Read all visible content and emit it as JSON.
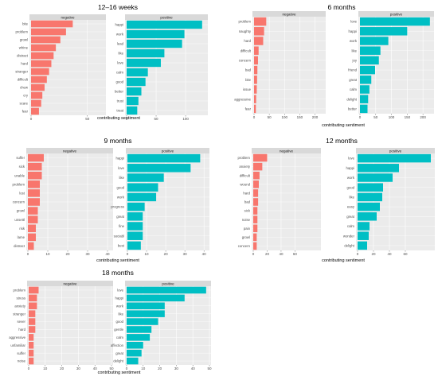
{
  "colors": {
    "negative": "#F8766D",
    "positive": "#00BFC4",
    "panel_bg": "#EBEBEB",
    "strip_bg": "#D9D9D9",
    "grid": "#FFFFFF",
    "text": "#4D4D4D"
  },
  "chart_data": [
    {
      "type": "bar",
      "orientation": "horizontal",
      "title": "12–16 weeks",
      "xlabel": "contributing sentiment",
      "facets": [
        {
          "name": "negative",
          "xticks": [
            0,
            50
          ],
          "xlim": [
            0,
            65
          ],
          "categories": [
            "bite",
            "problem",
            "growl",
            "whine",
            "distract",
            "hard",
            "stranger",
            "difficult",
            "chew",
            "cry",
            "scare",
            "fear"
          ],
          "values": [
            37,
            31,
            26,
            22,
            20,
            18,
            16,
            14,
            12,
            10,
            9,
            7
          ]
        },
        {
          "name": "positive",
          "xticks": [
            0,
            50,
            100
          ],
          "xlim": [
            0,
            135
          ],
          "categories": [
            "happi",
            "work",
            "lead",
            "like",
            "love",
            "calm",
            "good",
            "better",
            "trust",
            "treat"
          ],
          "values": [
            128,
            98,
            94,
            64,
            58,
            36,
            32,
            25,
            20,
            18
          ]
        }
      ]
    },
    {
      "type": "bar",
      "orientation": "horizontal",
      "title": "6 months",
      "xlabel": "contributing sentiment",
      "facets": [
        {
          "name": "negative",
          "xticks": [
            0,
            50,
            100,
            150,
            200
          ],
          "xlim": [
            0,
            230
          ],
          "categories": [
            "problem",
            "naughty",
            "hard",
            "difficult",
            "concern",
            "bad",
            "bite",
            "issue",
            "aggressive",
            "fear"
          ],
          "values": [
            40,
            33,
            30,
            15,
            13,
            11,
            10,
            9,
            7,
            6
          ]
        },
        {
          "name": "positive",
          "xticks": [
            0,
            50,
            100,
            150,
            200
          ],
          "xlim": [
            0,
            230
          ],
          "categories": [
            "love",
            "happi",
            "work",
            "like",
            "joy",
            "friend",
            "great",
            "calm",
            "delight",
            "better"
          ],
          "values": [
            222,
            150,
            90,
            65,
            60,
            48,
            36,
            30,
            26,
            24
          ]
        }
      ]
    },
    {
      "type": "bar",
      "orientation": "horizontal",
      "title": "9 months",
      "xlabel": "contributing sentiment",
      "facets": [
        {
          "name": "negative",
          "xticks": [
            0,
            10,
            20,
            30,
            40
          ],
          "xlim": [
            0,
            42
          ],
          "categories": [
            "suffer",
            "sick",
            "unable",
            "problem",
            "lost",
            "concern",
            "growl",
            "unsettl",
            "risk",
            "lame",
            "distract"
          ],
          "values": [
            8,
            7,
            7,
            6,
            6,
            6,
            5,
            5,
            4,
            4,
            3
          ]
        },
        {
          "name": "positive",
          "xticks": [
            0,
            10,
            20,
            30,
            40
          ],
          "xlim": [
            0,
            42
          ],
          "categories": [
            "happi",
            "love",
            "like",
            "good",
            "work",
            "progress",
            "great",
            "fine",
            "sociabl",
            "best"
          ],
          "values": [
            38,
            33,
            19,
            16,
            15,
            9,
            8,
            8,
            8,
            7
          ]
        }
      ]
    },
    {
      "type": "bar",
      "orientation": "horizontal",
      "title": "12 months",
      "xlabel": "contributing sentiment",
      "facets": [
        {
          "name": "negative",
          "xticks": [
            0,
            20,
            40,
            60
          ],
          "xlim": [
            0,
            95
          ],
          "categories": [
            "problem",
            "anxiety",
            "difficult",
            "wound",
            "hard",
            "bad",
            "sick",
            "noise",
            "pain",
            "growl",
            "concern"
          ],
          "values": [
            20,
            13,
            9,
            8,
            7,
            7,
            6,
            6,
            6,
            5,
            5
          ]
        },
        {
          "name": "positive",
          "xticks": [
            0,
            20,
            40,
            60
          ],
          "xlim": [
            0,
            95
          ],
          "categories": [
            "love",
            "happi",
            "work",
            "good",
            "like",
            "easy",
            "great",
            "calm",
            "wonder",
            "delight"
          ],
          "values": [
            92,
            52,
            44,
            32,
            31,
            28,
            24,
            15,
            14,
            12
          ]
        }
      ]
    },
    {
      "type": "bar",
      "orientation": "horizontal",
      "title": "18 months",
      "xlabel": "contributing sentiment",
      "facets": [
        {
          "name": "negative",
          "xticks": [
            0,
            10,
            20,
            30,
            40,
            50
          ],
          "xlim": [
            0,
            50
          ],
          "categories": [
            "problem",
            "stress",
            "anxiety",
            "stranger",
            "sever",
            "hard",
            "aggressive",
            "unfamiliar",
            "suffer",
            "noise"
          ],
          "values": [
            6,
            5,
            5,
            4,
            4,
            4,
            3,
            3,
            3,
            3
          ]
        },
        {
          "name": "positive",
          "xticks": [
            0,
            10,
            20,
            30,
            40,
            50
          ],
          "xlim": [
            0,
            50
          ],
          "categories": [
            "love",
            "happi",
            "work",
            "like",
            "good",
            "gentle",
            "calm",
            "affection",
            "great",
            "delight"
          ],
          "values": [
            48,
            35,
            23,
            23,
            19,
            15,
            14,
            10,
            9,
            7
          ]
        }
      ]
    }
  ]
}
